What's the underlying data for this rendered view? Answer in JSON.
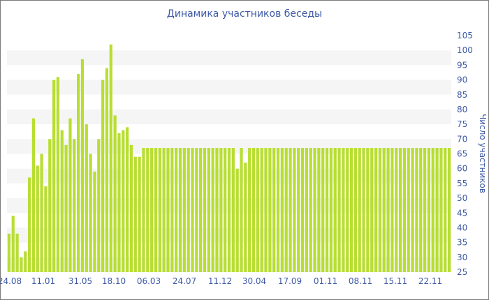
{
  "chart_data": {
    "type": "bar",
    "title": "Динамика участников беседы",
    "ylabel": "Число участников",
    "xlabel": "",
    "ylim": [
      25,
      105
    ],
    "y_ticks": [
      25,
      30,
      35,
      40,
      45,
      50,
      55,
      60,
      65,
      70,
      75,
      80,
      85,
      90,
      95,
      100,
      105
    ],
    "x_tick_labels": [
      "24.08",
      "11.01",
      "31.05",
      "18.10",
      "06.03",
      "24.07",
      "11.12",
      "30.04",
      "17.09",
      "01.11",
      "08.11",
      "15.11",
      "22.11"
    ],
    "grid": "horizontal bands",
    "colors": {
      "bar": "#b8de32",
      "axis_text": "#3e5aa6",
      "band": "#f5f5f5"
    },
    "values": [
      38,
      44,
      38,
      30,
      32,
      57,
      77,
      61,
      65,
      54,
      70,
      90,
      91,
      73,
      68,
      77,
      70,
      92,
      97,
      75,
      65,
      59,
      70,
      90,
      94,
      102,
      78,
      72,
      73,
      74,
      68,
      64,
      64,
      67,
      67,
      67,
      67,
      67,
      67,
      67,
      67,
      67,
      67,
      67,
      67,
      67,
      67,
      67,
      67,
      67,
      67,
      67,
      67,
      67,
      67,
      67,
      60,
      67,
      62,
      67,
      67,
      67,
      67,
      67,
      67,
      67,
      67,
      67,
      67,
      67,
      67,
      67,
      67,
      67,
      67,
      67,
      67,
      67,
      67,
      67,
      67,
      67,
      67,
      67,
      67,
      67,
      67,
      67,
      67,
      67,
      67,
      67,
      67,
      67,
      67,
      67,
      67,
      67,
      67,
      67,
      67,
      67,
      67,
      67,
      67,
      67,
      67,
      67,
      67
    ]
  }
}
